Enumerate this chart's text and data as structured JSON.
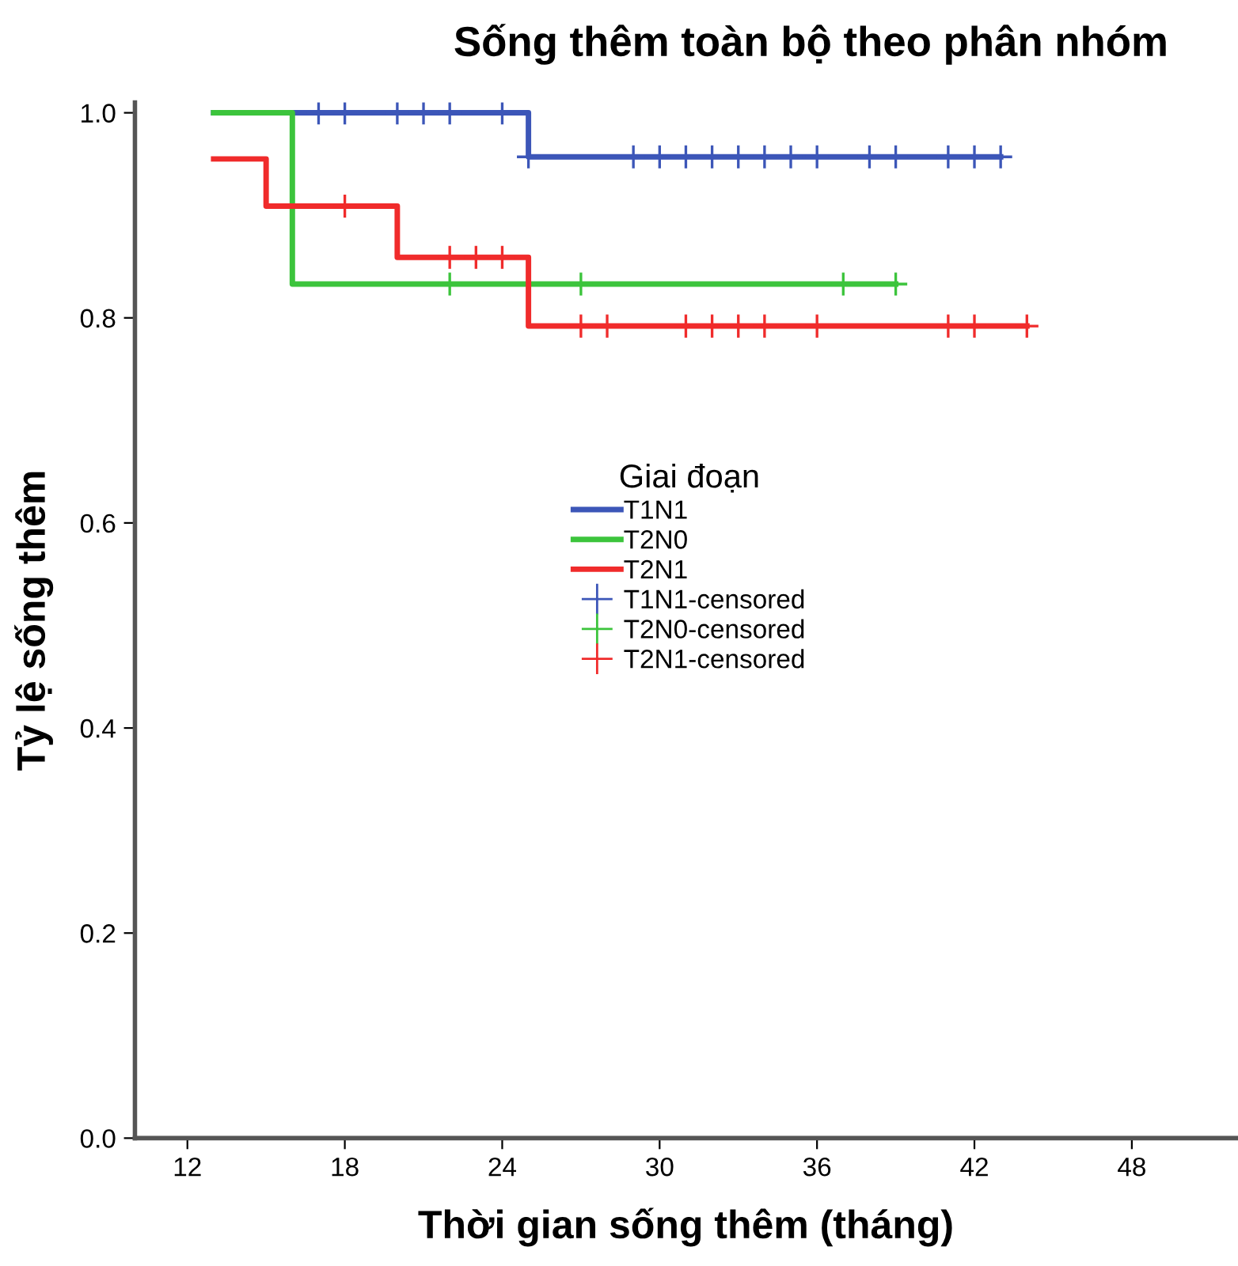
{
  "chart_data": {
    "type": "step",
    "title": "Sống thêm toàn bộ theo phân nhóm",
    "xlabel": "Thời gian sống thêm (tháng)",
    "ylabel": "Tỷ lệ sống thêm",
    "legend_title": "Giai đoạn",
    "legend": "right",
    "grid": false,
    "xlim": [
      10,
      52
    ],
    "xticks": [
      12,
      18,
      24,
      30,
      36,
      42,
      48
    ],
    "ylim": [
      0,
      1.01
    ],
    "yticks": [
      {
        "value": 0,
        "label": "0.0"
      },
      {
        "value": 0.2,
        "label": "0.2"
      },
      {
        "value": 0.4,
        "label": "0.4"
      },
      {
        "value": 0.6,
        "label": "0.6"
      },
      {
        "value": 0.8,
        "label": "0.8"
      },
      {
        "value": 1.0,
        "label": "1.0"
      }
    ],
    "series": [
      {
        "name": "T1N1",
        "color": "#3c56b8",
        "x": [
          13,
          25,
          43
        ],
        "values": [
          1.0,
          0.957,
          0.957
        ]
      },
      {
        "name": "T2N0",
        "color": "#3cc43c",
        "x": [
          13,
          16,
          39
        ],
        "values": [
          1.0,
          0.833,
          0.833
        ]
      },
      {
        "name": "T2N1",
        "color": "#f02b2b",
        "x": [
          13,
          15,
          20,
          25,
          44
        ],
        "values": [
          0.955,
          0.909,
          0.859,
          0.792,
          0.792
        ]
      },
      {
        "name": "T1N1-censored",
        "type": "scatter",
        "marker": "cross",
        "color": "#3c56b8",
        "x": [
          17,
          18,
          20,
          21,
          22,
          24,
          25,
          29,
          30,
          31,
          32,
          33,
          34,
          35,
          36,
          38,
          39,
          41,
          42,
          43
        ],
        "values": [
          1.0,
          1.0,
          1.0,
          1.0,
          1.0,
          1.0,
          0.957,
          0.957,
          0.957,
          0.957,
          0.957,
          0.957,
          0.957,
          0.957,
          0.957,
          0.957,
          0.957,
          0.957,
          0.957,
          0.957
        ]
      },
      {
        "name": "T2N0-censored",
        "type": "scatter",
        "marker": "cross",
        "color": "#3cc43c",
        "x": [
          22,
          27,
          37,
          39
        ],
        "values": [
          0.833,
          0.833,
          0.833,
          0.833
        ]
      },
      {
        "name": "T2N1-censored",
        "type": "scatter",
        "marker": "cross",
        "color": "#f02b2b",
        "x": [
          18,
          22,
          23,
          24,
          27,
          28,
          31,
          32,
          33,
          34,
          36,
          41,
          42,
          44
        ],
        "values": [
          0.909,
          0.859,
          0.859,
          0.859,
          0.792,
          0.792,
          0.792,
          0.792,
          0.792,
          0.792,
          0.792,
          0.792,
          0.792,
          0.792
        ]
      }
    ]
  }
}
